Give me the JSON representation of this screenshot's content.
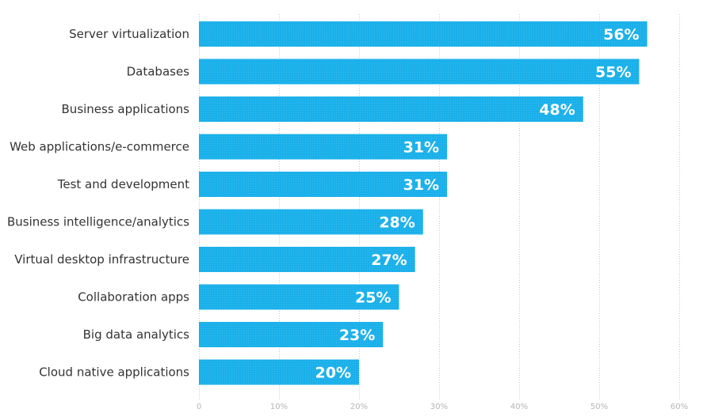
{
  "chart_data": {
    "type": "bar",
    "orientation": "horizontal",
    "title": "",
    "xlabel": "",
    "ylabel": "",
    "categories": [
      "Server virtualization",
      "Databases",
      "Business applications",
      "Web applications/e-commerce",
      "Test and development",
      "Business intelligence/analytics",
      "Virtual desktop infrastructure",
      "Collaboration apps",
      "Big data analytics",
      "Cloud native applications"
    ],
    "values": [
      56,
      55,
      48,
      31,
      31,
      28,
      27,
      25,
      23,
      20
    ],
    "value_labels": [
      "56%",
      "55%",
      "48%",
      "31%",
      "31%",
      "28%",
      "27%",
      "25%",
      "23%",
      "20%"
    ],
    "xlim": [
      0,
      60
    ],
    "xticks": [
      0,
      10,
      20,
      30,
      40,
      50,
      60
    ],
    "xtick_labels": [
      "0",
      "10%",
      "20%",
      "30%",
      "40%",
      "50%",
      "60%"
    ],
    "grid": "vertical dotted",
    "legend": "none",
    "colors": {
      "bar": "#1ab0ea",
      "value_text": "#ffffff",
      "category_text": "#333333",
      "tick_text": "#b5b5b5",
      "grid": "#c8c8c8"
    }
  }
}
